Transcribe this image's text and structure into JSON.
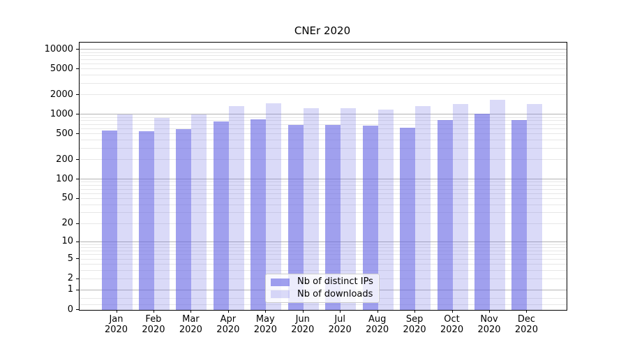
{
  "title": "CNEr 2020",
  "chart_data": {
    "type": "bar",
    "title": "CNEr 2020",
    "y_scale": "log1p",
    "grid": true,
    "months": [
      "Jan",
      "Feb",
      "Mar",
      "Apr",
      "May",
      "Jun",
      "Jul",
      "Aug",
      "Sep",
      "Oct",
      "Nov",
      "Dec"
    ],
    "year": "2020",
    "categories": [
      "Jan 2020",
      "Feb 2020",
      "Mar 2020",
      "Apr 2020",
      "May 2020",
      "Jun 2020",
      "Jul 2020",
      "Aug 2020",
      "Sep 2020",
      "Oct 2020",
      "Nov 2020",
      "Dec 2020"
    ],
    "series": [
      {
        "name": "Nb of distinct IPs",
        "color": "#6666e4",
        "alpha": 0.62,
        "values": [
          570,
          555,
          595,
          780,
          845,
          690,
          700,
          680,
          630,
          825,
          1025,
          830
        ]
      },
      {
        "name": "Nb of downloads",
        "color": "#7b7be7",
        "alpha": 0.28,
        "values": [
          1005,
          890,
          1005,
          1365,
          1505,
          1255,
          1275,
          1215,
          1365,
          1470,
          1690,
          1470
        ]
      }
    ],
    "y_ticks": [
      0,
      1,
      2,
      5,
      10,
      20,
      50,
      100,
      200,
      500,
      1000,
      2000,
      5000,
      10000
    ],
    "y_major_gridlines": [
      1,
      10,
      100,
      1000,
      10000
    ],
    "ylim": [
      0,
      12900
    ],
    "xlabel": "",
    "ylabel": "",
    "legend_position": "lower center"
  },
  "colors": {
    "axis": "#000000",
    "major_grid": "#b3b3b3",
    "minor_grid": "#e7e7e7",
    "legend_border": "#cccccc"
  }
}
